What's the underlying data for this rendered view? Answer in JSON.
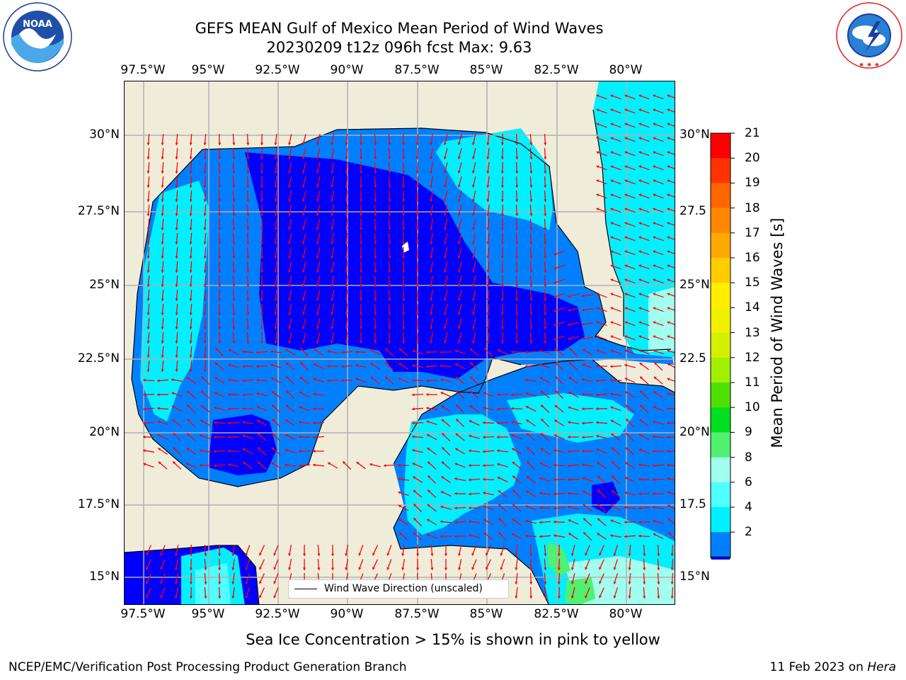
{
  "header": {
    "title_line1": "GEFS MEAN Gulf of Mexico Mean Period of Wind Waves",
    "title_line2": "20230209 t12z 096h fcst   Max: 9.63"
  },
  "logos": {
    "noaa": {
      "text": "NOAA",
      "ring_text": "NATIONAL OCEANIC AND ATMOSPHERIC ADMINISTRATION · U.S. DEPARTMENT OF COMMERCE"
    },
    "nws": {
      "ring_text": "NATIONAL WEATHER SERVICE"
    }
  },
  "map": {
    "lon_ticks": [
      "97.5°W",
      "95°W",
      "92.5°W",
      "90°W",
      "87.5°W",
      "85°W",
      "82.5°W",
      "80°W"
    ],
    "lat_ticks_left": [
      "30°N",
      "27.5°N",
      "25°N",
      "22.5°N",
      "20°N",
      "17.5°N",
      "15°N"
    ],
    "lat_ticks_right": [
      "30°N",
      "27.5",
      "25°N",
      "22.5",
      "20°N",
      "17.5",
      "15°N"
    ],
    "legend": "Wind Wave Direction (unscaled)",
    "colors": {
      "land": "#efedda",
      "grid": "#b0b0b0",
      "arrow": "#ff0000",
      "coast": "#000000"
    }
  },
  "colorbar": {
    "title": "Mean Period of Wind Waves [s]",
    "labels": [
      "21",
      "20",
      "19",
      "18",
      "17",
      "16",
      "15",
      "14",
      "13",
      "12",
      "11",
      "10",
      "9",
      "8",
      "6",
      "4",
      "2"
    ],
    "colors": [
      "#ff0000",
      "#ff3300",
      "#ff6600",
      "#ff8800",
      "#ffaa00",
      "#ffcc00",
      "#ffee00",
      "#f0f000",
      "#d4f000",
      "#a0f000",
      "#50e000",
      "#00e020",
      "#50f070",
      "#a0ffee",
      "#50ffff",
      "#00f0ff",
      "#0080ff"
    ],
    "under_color": "#0000ff"
  },
  "chart_data": {
    "type": "heatmap",
    "title": "GEFS MEAN Gulf of Mexico Mean Period of Wind Waves",
    "subtitle": "20230209 t12z 096h fcst   Max: 9.63",
    "max": 9.63,
    "unit": "s",
    "xlim": [
      -98.3,
      -78.5
    ],
    "ylim": [
      14.0,
      31.8
    ],
    "levels": [
      2,
      4,
      6,
      8,
      9,
      10,
      11,
      12,
      13,
      14,
      15,
      16,
      17,
      18,
      19,
      20,
      21
    ]
  },
  "footer": {
    "note": "Sea Ice Concentration > 15% is shown in pink to yellow",
    "credit": "NCEP/EMC/Verification Post Processing Product Generation Branch",
    "date": "11 Feb 2023 on",
    "machine": "Hera"
  }
}
